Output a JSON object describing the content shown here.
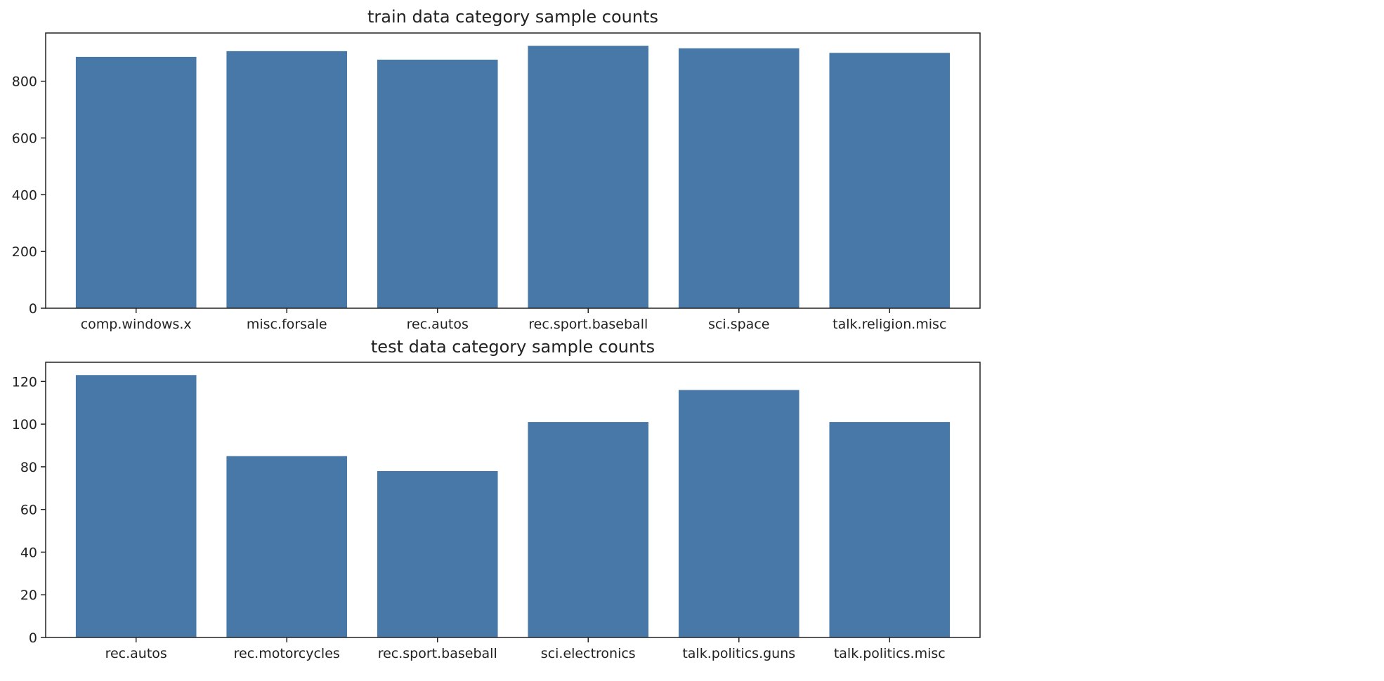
{
  "chart_data": [
    {
      "type": "bar",
      "title": "train data category sample counts",
      "xlabel": "",
      "ylabel": "",
      "categories": [
        "comp.windows.x",
        "misc.forsale",
        "rec.autos",
        "rec.sport.baseball",
        "sci.space",
        "talk.religion.misc"
      ],
      "values": [
        886,
        906,
        876,
        925,
        916,
        900
      ],
      "ylim": [
        0,
        970
      ],
      "yticks": [
        0,
        200,
        400,
        600,
        800
      ],
      "bar_color": "#4878a8",
      "grid": false,
      "legend": "none"
    },
    {
      "type": "bar",
      "title": "test data category sample counts",
      "xlabel": "",
      "ylabel": "",
      "categories": [
        "rec.autos",
        "rec.motorcycles",
        "rec.sport.baseball",
        "sci.electronics",
        "talk.politics.guns",
        "talk.politics.misc"
      ],
      "values": [
        123,
        85,
        78,
        101,
        116,
        101
      ],
      "ylim": [
        0,
        129
      ],
      "yticks": [
        0,
        20,
        40,
        60,
        80,
        100,
        120
      ],
      "bar_color": "#4878a8",
      "grid": false,
      "legend": "none"
    }
  ]
}
